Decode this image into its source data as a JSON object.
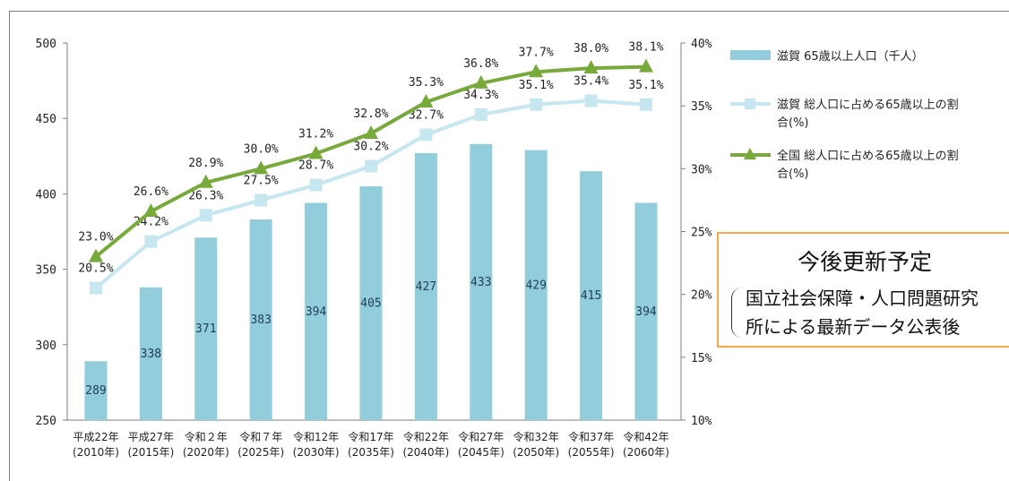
{
  "chart_data": {
    "type": "bar+line",
    "categories": [
      [
        "平成22年",
        "(2010年)"
      ],
      [
        "平成27年",
        "(2015年)"
      ],
      [
        "令和２年",
        "(2020年)"
      ],
      [
        "令和７年",
        "(2025年)"
      ],
      [
        "令和12年",
        "(2030年)"
      ],
      [
        "令和17年",
        "(2035年)"
      ],
      [
        "令和22年",
        "(2040年)"
      ],
      [
        "令和27年",
        "(2045年)"
      ],
      [
        "令和32年",
        "(2050年)"
      ],
      [
        "令和37年",
        "(2055年)"
      ],
      [
        "令和42年",
        "(2060年)"
      ]
    ],
    "left_axis": {
      "ylim": [
        250,
        500
      ],
      "ticks": [
        "250",
        "300",
        "350",
        "400",
        "450",
        "500"
      ]
    },
    "right_axis": {
      "ylim": [
        10,
        40
      ],
      "ticks": [
        "10%",
        "15%",
        "20%",
        "25%",
        "30%",
        "35%",
        "40%"
      ]
    },
    "series": [
      {
        "name": "滋賀 65歳以上人口（千人）",
        "kind": "bar",
        "axis": "left",
        "color": "#92cddc",
        "values": [
          289,
          338,
          371,
          383,
          394,
          405,
          427,
          433,
          429,
          415,
          394
        ],
        "labels": [
          "289",
          "338",
          "371",
          "383",
          "394",
          "405",
          "427",
          "433",
          "429",
          "415",
          "394"
        ]
      },
      {
        "name": "滋賀 総人口に占める65歳以上の割合(%)",
        "name_lines": [
          "滋賀 総人口に占める65歳以上の割",
          "合(%)"
        ],
        "kind": "line",
        "marker": "square",
        "axis": "right",
        "color": "#c6e6f0",
        "values": [
          20.5,
          24.2,
          26.3,
          27.5,
          28.7,
          30.2,
          32.7,
          34.3,
          35.1,
          35.4,
          35.1
        ],
        "labels": [
          "20.5%",
          "24.2%",
          "26.3%",
          "27.5%",
          "28.7%",
          "30.2%",
          "32.7%",
          "34.3%",
          "35.1%",
          "35.4%",
          "35.1%"
        ]
      },
      {
        "name": "全国 総人口に占める65歳以上の割合(%)",
        "name_lines": [
          "全国 総人口に占める65歳以上の割",
          "合(%)"
        ],
        "kind": "line",
        "marker": "triangle",
        "axis": "right",
        "color": "#77a93b",
        "values": [
          23.0,
          26.6,
          28.9,
          30.0,
          31.2,
          32.8,
          35.3,
          36.8,
          37.7,
          38.0,
          38.1
        ],
        "labels": [
          "23.0%",
          "26.6%",
          "28.9%",
          "30.0%",
          "31.2%",
          "32.8%",
          "35.3%",
          "36.8%",
          "37.7%",
          "38.0%",
          "38.1%"
        ]
      }
    ],
    "legend_position": "right",
    "grid": false
  },
  "notice": {
    "title": "今後更新予定",
    "line1": "国立社会保障・人口問題研究",
    "line2": "所による最新データ公表後"
  }
}
